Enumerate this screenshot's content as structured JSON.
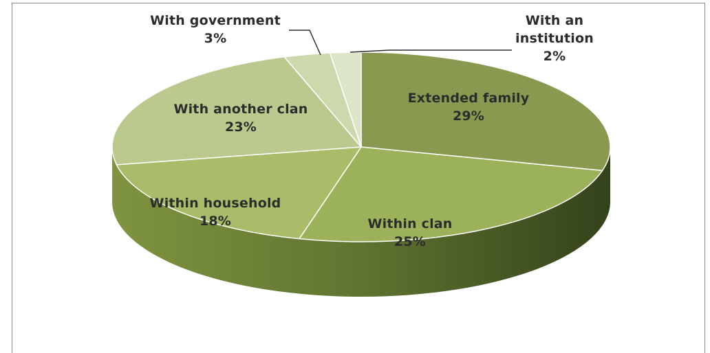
{
  "chart_data": {
    "type": "pie",
    "three_d": true,
    "title": "",
    "slices": [
      {
        "label": "Extended family",
        "value": 29,
        "value_label": "29%",
        "color": "#879a4f"
      },
      {
        "label": "Within clan",
        "value": 25,
        "value_label": "25%",
        "color": "#9cb25a"
      },
      {
        "label": "Within household",
        "value": 18,
        "value_label": "18%",
        "color": "#a9bc6a"
      },
      {
        "label": "With another clan",
        "value": 23,
        "value_label": "23%",
        "color": "#bac98d"
      },
      {
        "label": "With government",
        "value": 3,
        "value_label": "3%",
        "color": "#cdd8ad"
      },
      {
        "label": "With an institution",
        "value": 2,
        "value_label": "2%",
        "color": "#dde5c8"
      }
    ]
  }
}
